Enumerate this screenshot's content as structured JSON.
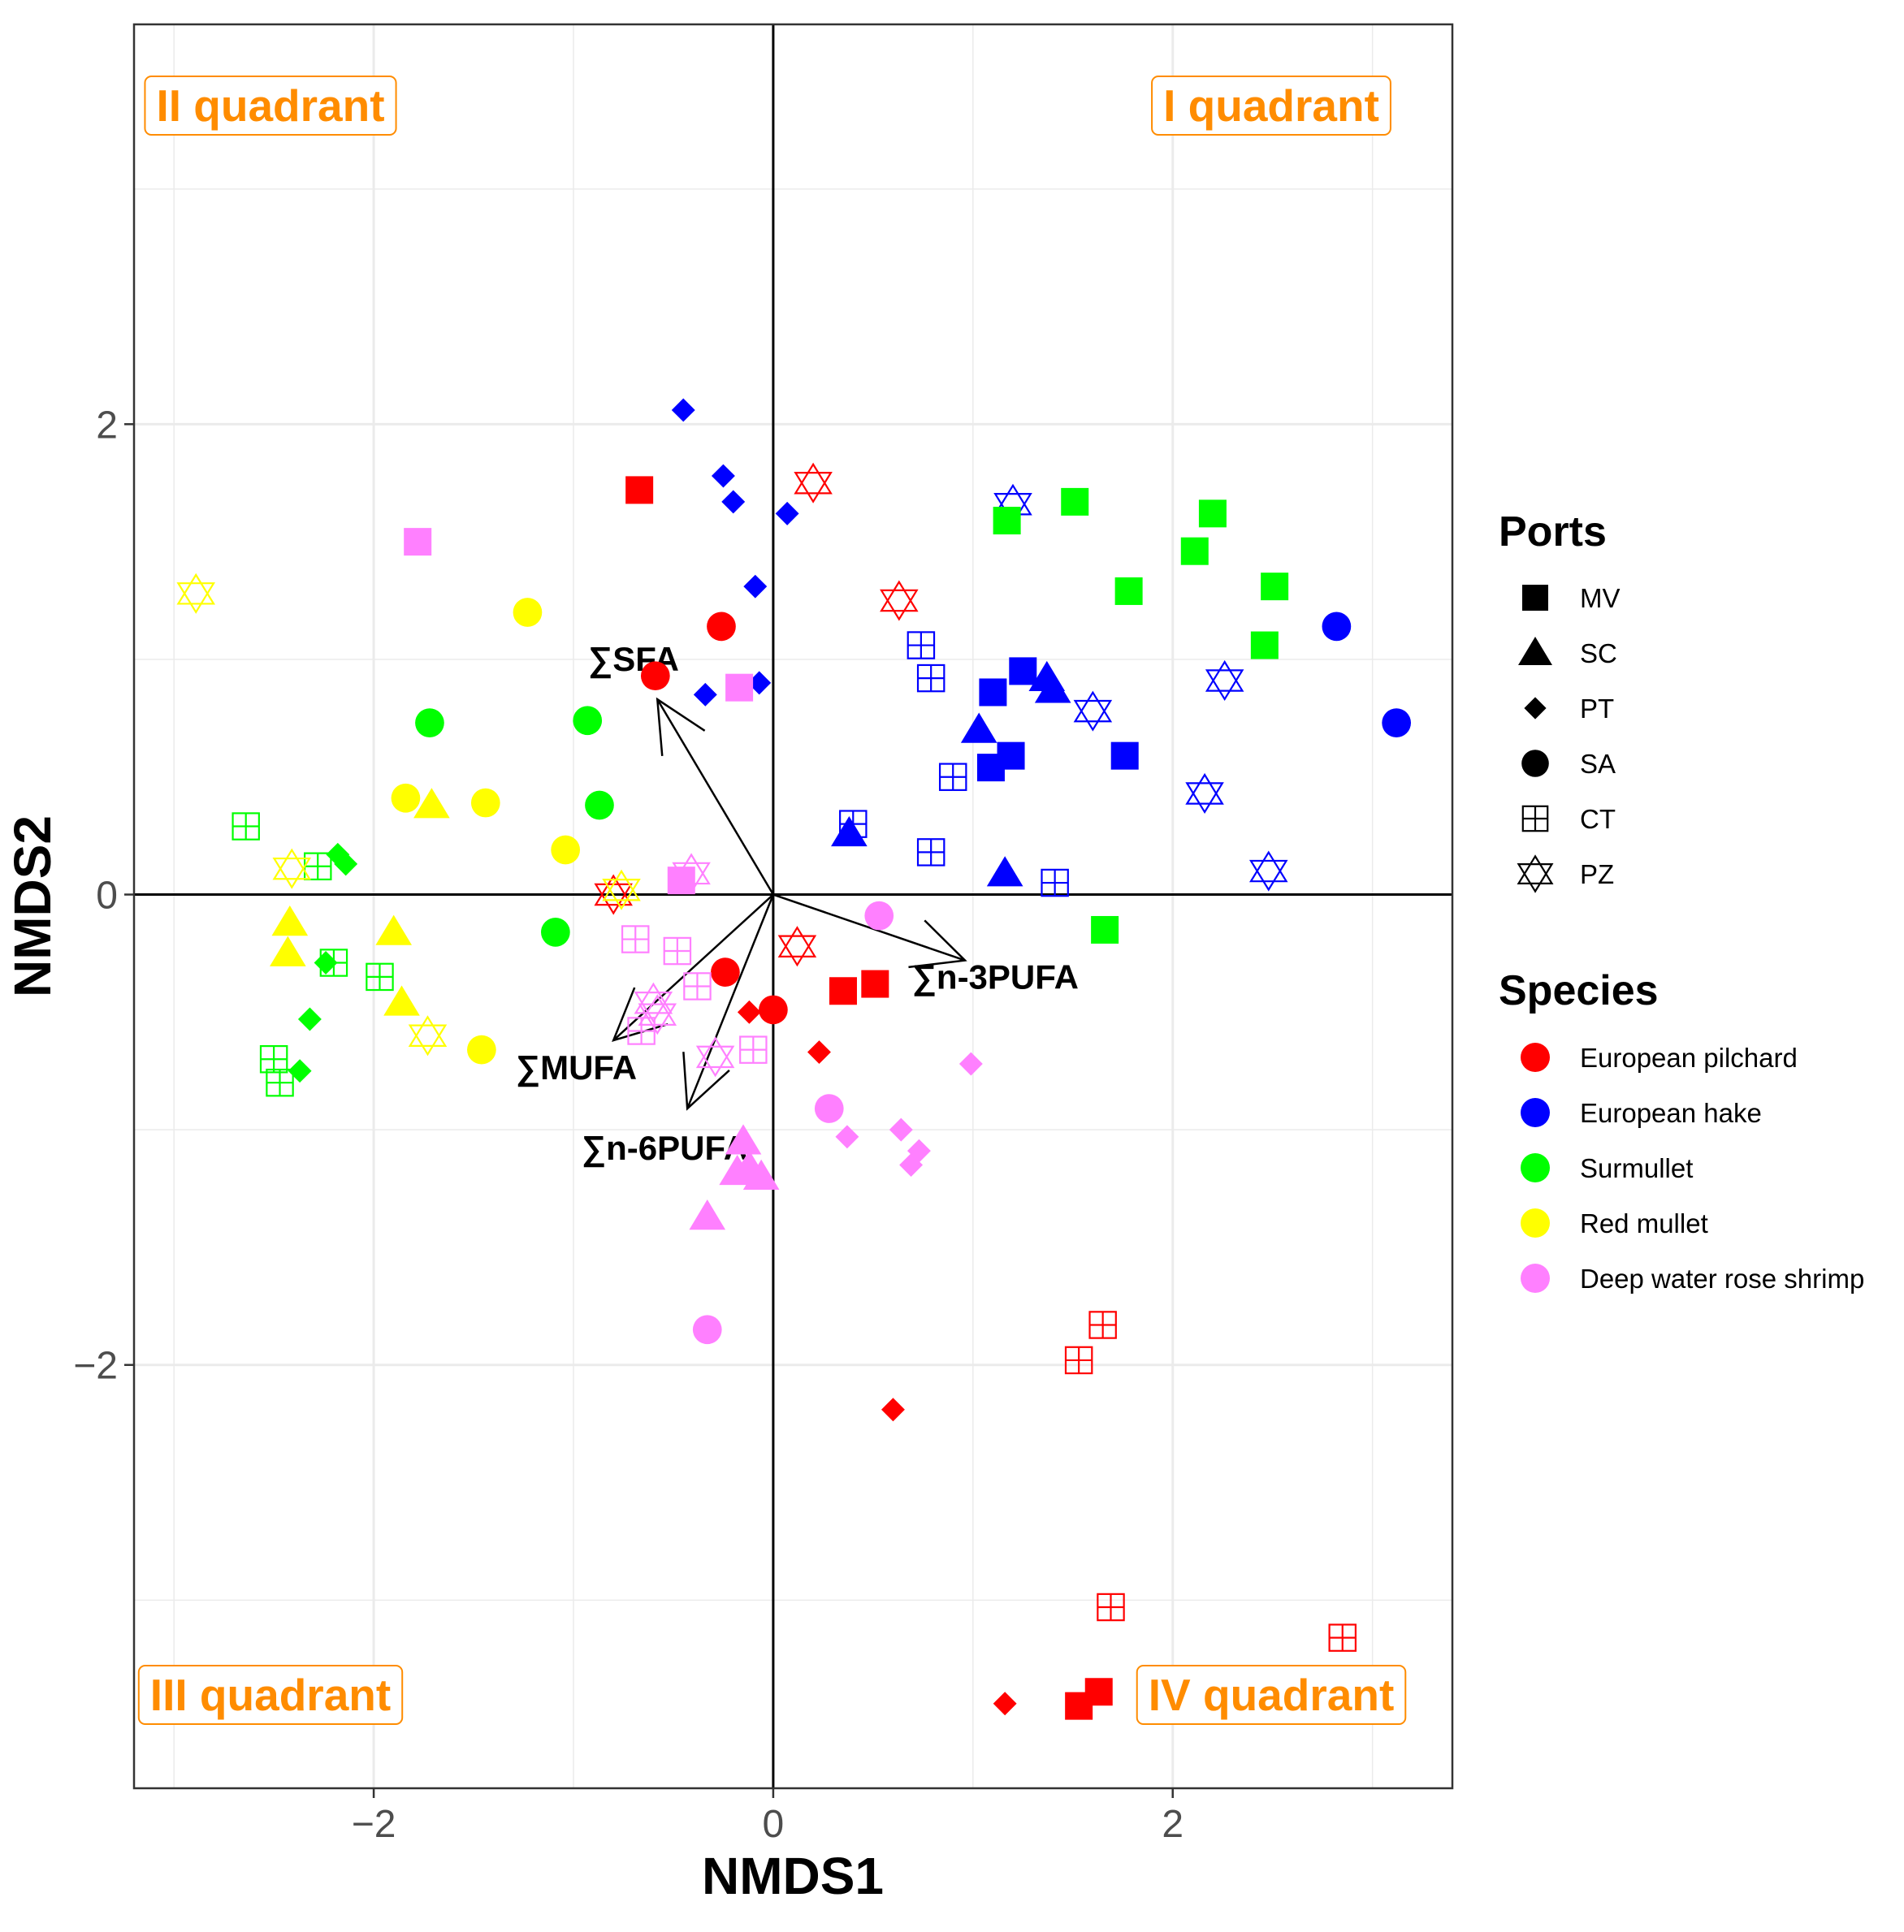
{
  "chart_data": {
    "type": "scatter",
    "xlabel": "NMDS1",
    "ylabel": "NMDS2",
    "xlim": [
      -3.2,
      3.4
    ],
    "ylim": [
      -3.8,
      3.7
    ],
    "x_ticks": [
      -2,
      0,
      2
    ],
    "y_ticks": [
      -2,
      0,
      2
    ],
    "x_tick_labels": [
      "−2",
      "0",
      "2"
    ],
    "y_tick_labels": [
      "−2",
      "0",
      "2"
    ],
    "grid": true,
    "reference_lines": {
      "x": 0,
      "y": 0
    },
    "quadrant_labels": [
      {
        "text": "II quadrant",
        "position": "top-left"
      },
      {
        "text": "I quadrant",
        "position": "top-right"
      },
      {
        "text": "III quadrant",
        "position": "bottom-left"
      },
      {
        "text": "IV quadrant",
        "position": "bottom-right"
      }
    ],
    "vectors": [
      {
        "label": "∑SFA",
        "x": -0.58,
        "y": 0.83
      },
      {
        "label": "∑n-3PUFA",
        "x": 0.96,
        "y": -0.28
      },
      {
        "label": "∑MUFA",
        "x": -0.8,
        "y": -0.62
      },
      {
        "label": "∑n-6PUFA",
        "x": -0.43,
        "y": -0.91
      }
    ],
    "legend": {
      "position": "right",
      "ports_title": "Ports",
      "ports": [
        {
          "code": "MV",
          "shape": "square"
        },
        {
          "code": "SC",
          "shape": "triangle"
        },
        {
          "code": "PT",
          "shape": "diamond"
        },
        {
          "code": "SA",
          "shape": "circle"
        },
        {
          "code": "CT",
          "shape": "boxplus"
        },
        {
          "code": "PZ",
          "shape": "star"
        }
      ],
      "species_title": "Species",
      "species": [
        {
          "name": "European pilchard",
          "color": "#ff0000"
        },
        {
          "name": "European hake",
          "color": "#0000ff"
        },
        {
          "name": "Surmullet",
          "color": "#00ff00"
        },
        {
          "name": "Red mullet",
          "color": "#ffff00"
        },
        {
          "name": "Deep water rose shrimp",
          "color": "#ff80ff"
        }
      ]
    },
    "points": [
      {
        "species": "European pilchard",
        "port": "MV",
        "x": -0.67,
        "y": 1.72
      },
      {
        "species": "European pilchard",
        "port": "MV",
        "x": 0.35,
        "y": -0.41
      },
      {
        "species": "European pilchard",
        "port": "MV",
        "x": 0.51,
        "y": -0.38
      },
      {
        "species": "European pilchard",
        "port": "MV",
        "x": 1.53,
        "y": -3.45
      },
      {
        "species": "European pilchard",
        "port": "MV",
        "x": 1.63,
        "y": -3.39
      },
      {
        "species": "European pilchard",
        "port": "PT",
        "x": -0.12,
        "y": -0.5
      },
      {
        "species": "European pilchard",
        "port": "PT",
        "x": 0.23,
        "y": -0.67
      },
      {
        "species": "European pilchard",
        "port": "PT",
        "x": 0.6,
        "y": -2.19
      },
      {
        "species": "European pilchard",
        "port": "PT",
        "x": 1.16,
        "y": -3.44
      },
      {
        "species": "European pilchard",
        "port": "SA",
        "x": -0.26,
        "y": 1.14
      },
      {
        "species": "European pilchard",
        "port": "SA",
        "x": -0.59,
        "y": 0.93
      },
      {
        "species": "European pilchard",
        "port": "SA",
        "x": -0.24,
        "y": -0.33
      },
      {
        "species": "European pilchard",
        "port": "SA",
        "x": 0.0,
        "y": -0.49
      },
      {
        "species": "European pilchard",
        "port": "CT",
        "x": 1.65,
        "y": -1.83
      },
      {
        "species": "European pilchard",
        "port": "CT",
        "x": 1.53,
        "y": -1.98
      },
      {
        "species": "European pilchard",
        "port": "CT",
        "x": 1.69,
        "y": -3.03
      },
      {
        "species": "European pilchard",
        "port": "CT",
        "x": 2.85,
        "y": -3.16
      },
      {
        "species": "European pilchard",
        "port": "PZ",
        "x": 0.2,
        "y": 1.75
      },
      {
        "species": "European pilchard",
        "port": "PZ",
        "x": 0.63,
        "y": 1.25
      },
      {
        "species": "European pilchard",
        "port": "PZ",
        "x": -0.8,
        "y": 0.0
      },
      {
        "species": "European pilchard",
        "port": "PZ",
        "x": 0.12,
        "y": -0.22
      },
      {
        "species": "European hake",
        "port": "MV",
        "x": 1.1,
        "y": 0.86
      },
      {
        "species": "European hake",
        "port": "MV",
        "x": 1.25,
        "y": 0.95
      },
      {
        "species": "European hake",
        "port": "MV",
        "x": 1.09,
        "y": 0.54
      },
      {
        "species": "European hake",
        "port": "MV",
        "x": 1.19,
        "y": 0.59
      },
      {
        "species": "European hake",
        "port": "MV",
        "x": 1.76,
        "y": 0.59
      },
      {
        "species": "European hake",
        "port": "SC",
        "x": 1.03,
        "y": 0.7
      },
      {
        "species": "European hake",
        "port": "SC",
        "x": 1.37,
        "y": 0.92
      },
      {
        "species": "European hake",
        "port": "SC",
        "x": 1.4,
        "y": 0.87
      },
      {
        "species": "European hake",
        "port": "SC",
        "x": 0.38,
        "y": 0.26
      },
      {
        "species": "European hake",
        "port": "SC",
        "x": 1.16,
        "y": 0.09
      },
      {
        "species": "European hake",
        "port": "PT",
        "x": -0.45,
        "y": 2.06
      },
      {
        "species": "European hake",
        "port": "PT",
        "x": -0.25,
        "y": 1.78
      },
      {
        "species": "European hake",
        "port": "PT",
        "x": -0.2,
        "y": 1.67
      },
      {
        "species": "European hake",
        "port": "PT",
        "x": 0.07,
        "y": 1.62
      },
      {
        "species": "European hake",
        "port": "PT",
        "x": -0.09,
        "y": 1.31
      },
      {
        "species": "European hake",
        "port": "PT",
        "x": -0.34,
        "y": 0.85
      },
      {
        "species": "European hake",
        "port": "PT",
        "x": -0.07,
        "y": 0.9
      },
      {
        "species": "European hake",
        "port": "SA",
        "x": 2.82,
        "y": 1.14
      },
      {
        "species": "European hake",
        "port": "SA",
        "x": 3.12,
        "y": 0.73
      },
      {
        "species": "European hake",
        "port": "CT",
        "x": 0.74,
        "y": 1.06
      },
      {
        "species": "European hake",
        "port": "CT",
        "x": 0.79,
        "y": 0.92
      },
      {
        "species": "European hake",
        "port": "CT",
        "x": 0.9,
        "y": 0.5
      },
      {
        "species": "European hake",
        "port": "CT",
        "x": 0.4,
        "y": 0.3
      },
      {
        "species": "European hake",
        "port": "CT",
        "x": 0.79,
        "y": 0.18
      },
      {
        "species": "European hake",
        "port": "CT",
        "x": 1.41,
        "y": 0.05
      },
      {
        "species": "European hake",
        "port": "PZ",
        "x": 1.2,
        "y": 1.66
      },
      {
        "species": "European hake",
        "port": "PZ",
        "x": 1.6,
        "y": 0.78
      },
      {
        "species": "European hake",
        "port": "PZ",
        "x": 2.26,
        "y": 0.91
      },
      {
        "species": "European hake",
        "port": "PZ",
        "x": 2.16,
        "y": 0.43
      },
      {
        "species": "European hake",
        "port": "PZ",
        "x": 2.48,
        "y": 0.1
      },
      {
        "species": "Surmullet",
        "port": "MV",
        "x": 1.51,
        "y": 1.67
      },
      {
        "species": "Surmullet",
        "port": "MV",
        "x": 1.17,
        "y": 1.59
      },
      {
        "species": "Surmullet",
        "port": "MV",
        "x": 2.2,
        "y": 1.62
      },
      {
        "species": "Surmullet",
        "port": "MV",
        "x": 2.11,
        "y": 1.46
      },
      {
        "species": "Surmullet",
        "port": "MV",
        "x": 1.78,
        "y": 1.29
      },
      {
        "species": "Surmullet",
        "port": "MV",
        "x": 2.51,
        "y": 1.31
      },
      {
        "species": "Surmullet",
        "port": "MV",
        "x": 2.46,
        "y": 1.06
      },
      {
        "species": "Surmullet",
        "port": "MV",
        "x": 1.66,
        "y": -0.15
      },
      {
        "species": "Surmullet",
        "port": "PT",
        "x": -2.18,
        "y": 0.17
      },
      {
        "species": "Surmullet",
        "port": "PT",
        "x": -2.14,
        "y": 0.13
      },
      {
        "species": "Surmullet",
        "port": "PT",
        "x": -2.24,
        "y": -0.29
      },
      {
        "species": "Surmullet",
        "port": "PT",
        "x": -2.32,
        "y": -0.53
      },
      {
        "species": "Surmullet",
        "port": "PT",
        "x": -2.37,
        "y": -0.75
      },
      {
        "species": "Surmullet",
        "port": "SA",
        "x": -1.72,
        "y": 0.73
      },
      {
        "species": "Surmullet",
        "port": "SA",
        "x": -0.93,
        "y": 0.74
      },
      {
        "species": "Surmullet",
        "port": "SA",
        "x": -0.87,
        "y": 0.38
      },
      {
        "species": "Surmullet",
        "port": "SA",
        "x": -1.09,
        "y": -0.16
      },
      {
        "species": "Surmullet",
        "port": "CT",
        "x": -2.64,
        "y": 0.29
      },
      {
        "species": "Surmullet",
        "port": "CT",
        "x": -2.28,
        "y": 0.12
      },
      {
        "species": "Surmullet",
        "port": "CT",
        "x": -2.2,
        "y": -0.29
      },
      {
        "species": "Surmullet",
        "port": "CT",
        "x": -1.97,
        "y": -0.35
      },
      {
        "species": "Surmullet",
        "port": "CT",
        "x": -2.5,
        "y": -0.7
      },
      {
        "species": "Surmullet",
        "port": "CT",
        "x": -2.47,
        "y": -0.8
      },
      {
        "species": "Red mullet",
        "port": "SC",
        "x": -1.71,
        "y": 0.38
      },
      {
        "species": "Red mullet",
        "port": "SC",
        "x": -2.42,
        "y": -0.12
      },
      {
        "species": "Red mullet",
        "port": "SC",
        "x": -2.43,
        "y": -0.25
      },
      {
        "species": "Red mullet",
        "port": "SC",
        "x": -1.9,
        "y": -0.16
      },
      {
        "species": "Red mullet",
        "port": "SC",
        "x": -1.86,
        "y": -0.46
      },
      {
        "species": "Red mullet",
        "port": "SA",
        "x": -1.23,
        "y": 1.2
      },
      {
        "species": "Red mullet",
        "port": "SA",
        "x": -1.84,
        "y": 0.41
      },
      {
        "species": "Red mullet",
        "port": "SA",
        "x": -1.44,
        "y": 0.39
      },
      {
        "species": "Red mullet",
        "port": "SA",
        "x": -1.04,
        "y": 0.19
      },
      {
        "species": "Red mullet",
        "port": "SA",
        "x": -1.46,
        "y": -0.66
      },
      {
        "species": "Red mullet",
        "port": "PZ",
        "x": -2.89,
        "y": 1.28
      },
      {
        "species": "Red mullet",
        "port": "PZ",
        "x": -2.41,
        "y": 0.11
      },
      {
        "species": "Red mullet",
        "port": "PZ",
        "x": -0.76,
        "y": 0.02
      },
      {
        "species": "Red mullet",
        "port": "PZ",
        "x": -1.73,
        "y": -0.6
      },
      {
        "species": "Deep water rose shrimp",
        "port": "MV",
        "x": -1.78,
        "y": 1.5
      },
      {
        "species": "Deep water rose shrimp",
        "port": "MV",
        "x": -0.17,
        "y": 0.88
      },
      {
        "species": "Deep water rose shrimp",
        "port": "MV",
        "x": -0.46,
        "y": 0.06
      },
      {
        "species": "Deep water rose shrimp",
        "port": "SC",
        "x": -0.15,
        "y": -1.05
      },
      {
        "species": "Deep water rose shrimp",
        "port": "SC",
        "x": -0.18,
        "y": -1.18
      },
      {
        "species": "Deep water rose shrimp",
        "port": "SC",
        "x": -0.12,
        "y": -1.16
      },
      {
        "species": "Deep water rose shrimp",
        "port": "SC",
        "x": -0.06,
        "y": -1.2
      },
      {
        "species": "Deep water rose shrimp",
        "port": "SC",
        "x": -0.33,
        "y": -1.37
      },
      {
        "species": "Deep water rose shrimp",
        "port": "PT",
        "x": 0.99,
        "y": -0.72
      },
      {
        "species": "Deep water rose shrimp",
        "port": "PT",
        "x": 0.64,
        "y": -1.0
      },
      {
        "species": "Deep water rose shrimp",
        "port": "PT",
        "x": 0.37,
        "y": -1.03
      },
      {
        "species": "Deep water rose shrimp",
        "port": "PT",
        "x": 0.73,
        "y": -1.09
      },
      {
        "species": "Deep water rose shrimp",
        "port": "PT",
        "x": 0.69,
        "y": -1.15
      },
      {
        "species": "Deep water rose shrimp",
        "port": "SA",
        "x": 0.53,
        "y": -0.09
      },
      {
        "species": "Deep water rose shrimp",
        "port": "SA",
        "x": 0.28,
        "y": -0.91
      },
      {
        "species": "Deep water rose shrimp",
        "port": "SA",
        "x": -0.33,
        "y": -1.85
      },
      {
        "species": "Deep water rose shrimp",
        "port": "CT",
        "x": -0.69,
        "y": -0.19
      },
      {
        "species": "Deep water rose shrimp",
        "port": "CT",
        "x": -0.48,
        "y": -0.24
      },
      {
        "species": "Deep water rose shrimp",
        "port": "CT",
        "x": -0.38,
        "y": -0.39
      },
      {
        "species": "Deep water rose shrimp",
        "port": "CT",
        "x": -0.66,
        "y": -0.58
      },
      {
        "species": "Deep water rose shrimp",
        "port": "CT",
        "x": -0.1,
        "y": -0.66
      },
      {
        "species": "Deep water rose shrimp",
        "port": "PZ",
        "x": -0.41,
        "y": 0.09
      },
      {
        "species": "Deep water rose shrimp",
        "port": "PZ",
        "x": -0.6,
        "y": -0.46
      },
      {
        "species": "Deep water rose shrimp",
        "port": "PZ",
        "x": -0.58,
        "y": -0.51
      },
      {
        "species": "Deep water rose shrimp",
        "port": "PZ",
        "x": -0.29,
        "y": -0.69
      }
    ]
  }
}
